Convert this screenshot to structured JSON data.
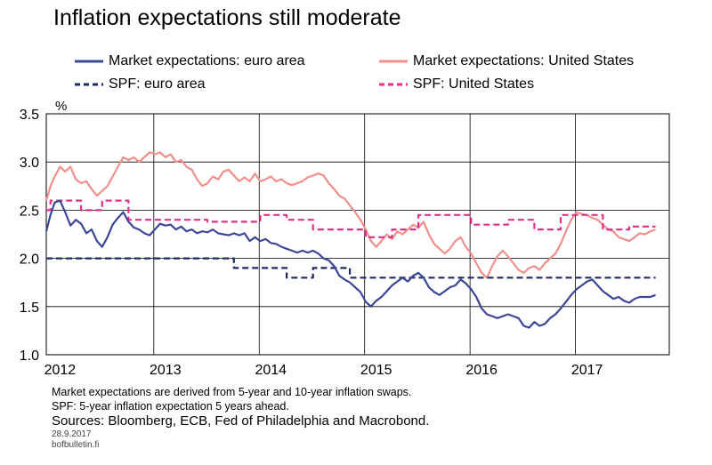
{
  "title": "Inflation expectations still moderate",
  "notes": {
    "line1": "Market expectations are derived from 5-year and 10-year inflation swaps.",
    "line2": "SPF: 5-year inflation expectation 5 years ahead.",
    "sources": "Sources: Bloomberg, ECB, Fed of Philadelphia and Macrobond.",
    "date": "28.9.2017",
    "site": "bofbulletin.fi"
  },
  "colors": {
    "market_euro": "#3c4896",
    "market_us": "#f0908c",
    "spf_euro": "#1f2a5e",
    "spf_us": "#e0308a"
  },
  "chart_data": {
    "type": "line",
    "title": "Inflation expectations still moderate",
    "ylabel": "%",
    "ylim": [
      1.0,
      3.5
    ],
    "yticks": [
      "1.0",
      "1.5",
      "2.0",
      "2.5",
      "3.0",
      "3.5"
    ],
    "xlim": [
      2011.92,
      2017.83
    ],
    "xticks": [
      {
        "label": "2012",
        "x": 2012.0
      },
      {
        "label": "2013",
        "x": 2013.0
      },
      {
        "label": "2014",
        "x": 2014.0
      },
      {
        "label": "2015",
        "x": 2015.0
      },
      {
        "label": "2016",
        "x": 2016.0
      },
      {
        "label": "2017",
        "x": 2017.0
      }
    ],
    "grid": true,
    "legend_position": "top",
    "series": [
      {
        "name": "Market expectations: euro area",
        "style": "solid",
        "points": [
          [
            2011.92,
            2.28
          ],
          [
            2011.96,
            2.45
          ],
          [
            2012.0,
            2.58
          ],
          [
            2012.05,
            2.6
          ],
          [
            2012.1,
            2.48
          ],
          [
            2012.15,
            2.34
          ],
          [
            2012.2,
            2.4
          ],
          [
            2012.25,
            2.36
          ],
          [
            2012.3,
            2.26
          ],
          [
            2012.35,
            2.3
          ],
          [
            2012.4,
            2.18
          ],
          [
            2012.45,
            2.12
          ],
          [
            2012.5,
            2.22
          ],
          [
            2012.55,
            2.35
          ],
          [
            2012.6,
            2.42
          ],
          [
            2012.65,
            2.48
          ],
          [
            2012.7,
            2.38
          ],
          [
            2012.75,
            2.32
          ],
          [
            2012.8,
            2.3
          ],
          [
            2012.85,
            2.26
          ],
          [
            2012.9,
            2.24
          ],
          [
            2012.95,
            2.3
          ],
          [
            2013.0,
            2.36
          ],
          [
            2013.05,
            2.34
          ],
          [
            2013.1,
            2.35
          ],
          [
            2013.15,
            2.3
          ],
          [
            2013.2,
            2.33
          ],
          [
            2013.25,
            2.28
          ],
          [
            2013.3,
            2.3
          ],
          [
            2013.35,
            2.26
          ],
          [
            2013.4,
            2.28
          ],
          [
            2013.45,
            2.27
          ],
          [
            2013.5,
            2.3
          ],
          [
            2013.55,
            2.26
          ],
          [
            2013.6,
            2.25
          ],
          [
            2013.65,
            2.24
          ],
          [
            2013.7,
            2.26
          ],
          [
            2013.75,
            2.24
          ],
          [
            2013.8,
            2.26
          ],
          [
            2013.85,
            2.18
          ],
          [
            2013.9,
            2.22
          ],
          [
            2013.95,
            2.18
          ],
          [
            2014.0,
            2.2
          ],
          [
            2014.05,
            2.16
          ],
          [
            2014.1,
            2.15
          ],
          [
            2014.15,
            2.12
          ],
          [
            2014.2,
            2.1
          ],
          [
            2014.25,
            2.08
          ],
          [
            2014.3,
            2.06
          ],
          [
            2014.35,
            2.08
          ],
          [
            2014.4,
            2.06
          ],
          [
            2014.45,
            2.08
          ],
          [
            2014.5,
            2.05
          ],
          [
            2014.55,
            2.0
          ],
          [
            2014.6,
            1.98
          ],
          [
            2014.65,
            1.92
          ],
          [
            2014.7,
            1.82
          ],
          [
            2014.75,
            1.78
          ],
          [
            2014.8,
            1.75
          ],
          [
            2014.85,
            1.7
          ],
          [
            2014.9,
            1.65
          ],
          [
            2014.95,
            1.55
          ],
          [
            2015.0,
            1.5
          ],
          [
            2015.05,
            1.56
          ],
          [
            2015.1,
            1.6
          ],
          [
            2015.15,
            1.66
          ],
          [
            2015.2,
            1.72
          ],
          [
            2015.25,
            1.76
          ],
          [
            2015.3,
            1.8
          ],
          [
            2015.35,
            1.76
          ],
          [
            2015.4,
            1.82
          ],
          [
            2015.45,
            1.85
          ],
          [
            2015.5,
            1.8
          ],
          [
            2015.55,
            1.7
          ],
          [
            2015.6,
            1.65
          ],
          [
            2015.65,
            1.62
          ],
          [
            2015.7,
            1.66
          ],
          [
            2015.75,
            1.7
          ],
          [
            2015.8,
            1.72
          ],
          [
            2015.85,
            1.78
          ],
          [
            2015.9,
            1.74
          ],
          [
            2015.95,
            1.68
          ],
          [
            2016.0,
            1.6
          ],
          [
            2016.05,
            1.48
          ],
          [
            2016.1,
            1.42
          ],
          [
            2016.15,
            1.4
          ],
          [
            2016.2,
            1.38
          ],
          [
            2016.25,
            1.4
          ],
          [
            2016.3,
            1.42
          ],
          [
            2016.35,
            1.4
          ],
          [
            2016.4,
            1.38
          ],
          [
            2016.45,
            1.3
          ],
          [
            2016.5,
            1.28
          ],
          [
            2016.55,
            1.34
          ],
          [
            2016.6,
            1.3
          ],
          [
            2016.65,
            1.32
          ],
          [
            2016.7,
            1.38
          ],
          [
            2016.75,
            1.42
          ],
          [
            2016.8,
            1.48
          ],
          [
            2016.85,
            1.55
          ],
          [
            2016.9,
            1.62
          ],
          [
            2016.95,
            1.68
          ],
          [
            2017.0,
            1.72
          ],
          [
            2017.05,
            1.76
          ],
          [
            2017.1,
            1.78
          ],
          [
            2017.15,
            1.72
          ],
          [
            2017.2,
            1.66
          ],
          [
            2017.25,
            1.62
          ],
          [
            2017.3,
            1.58
          ],
          [
            2017.35,
            1.6
          ],
          [
            2017.4,
            1.56
          ],
          [
            2017.45,
            1.54
          ],
          [
            2017.5,
            1.58
          ],
          [
            2017.55,
            1.6
          ],
          [
            2017.6,
            1.6
          ],
          [
            2017.65,
            1.6
          ],
          [
            2017.7,
            1.62
          ]
        ]
      },
      {
        "name": "Market expectations: United States",
        "style": "solid",
        "points": [
          [
            2011.92,
            2.6
          ],
          [
            2011.96,
            2.75
          ],
          [
            2012.0,
            2.85
          ],
          [
            2012.05,
            2.95
          ],
          [
            2012.1,
            2.9
          ],
          [
            2012.15,
            2.95
          ],
          [
            2012.2,
            2.82
          ],
          [
            2012.25,
            2.78
          ],
          [
            2012.3,
            2.8
          ],
          [
            2012.35,
            2.72
          ],
          [
            2012.4,
            2.65
          ],
          [
            2012.45,
            2.7
          ],
          [
            2012.5,
            2.75
          ],
          [
            2012.55,
            2.85
          ],
          [
            2012.6,
            2.95
          ],
          [
            2012.65,
            3.05
          ],
          [
            2012.7,
            3.02
          ],
          [
            2012.75,
            3.05
          ],
          [
            2012.8,
            3.0
          ],
          [
            2012.85,
            3.05
          ],
          [
            2012.9,
            3.1
          ],
          [
            2012.95,
            3.08
          ],
          [
            2013.0,
            3.1
          ],
          [
            2013.05,
            3.05
          ],
          [
            2013.1,
            3.08
          ],
          [
            2013.15,
            3.0
          ],
          [
            2013.2,
            3.02
          ],
          [
            2013.25,
            2.95
          ],
          [
            2013.3,
            2.92
          ],
          [
            2013.35,
            2.82
          ],
          [
            2013.4,
            2.75
          ],
          [
            2013.45,
            2.78
          ],
          [
            2013.5,
            2.85
          ],
          [
            2013.55,
            2.82
          ],
          [
            2013.6,
            2.9
          ],
          [
            2013.65,
            2.92
          ],
          [
            2013.7,
            2.86
          ],
          [
            2013.75,
            2.8
          ],
          [
            2013.8,
            2.84
          ],
          [
            2013.85,
            2.8
          ],
          [
            2013.9,
            2.88
          ],
          [
            2013.95,
            2.8
          ],
          [
            2014.0,
            2.82
          ],
          [
            2014.05,
            2.85
          ],
          [
            2014.1,
            2.8
          ],
          [
            2014.15,
            2.82
          ],
          [
            2014.2,
            2.78
          ],
          [
            2014.25,
            2.76
          ],
          [
            2014.3,
            2.78
          ],
          [
            2014.35,
            2.8
          ],
          [
            2014.4,
            2.84
          ],
          [
            2014.45,
            2.86
          ],
          [
            2014.5,
            2.88
          ],
          [
            2014.55,
            2.86
          ],
          [
            2014.6,
            2.78
          ],
          [
            2014.65,
            2.72
          ],
          [
            2014.7,
            2.65
          ],
          [
            2014.75,
            2.62
          ],
          [
            2014.8,
            2.55
          ],
          [
            2014.85,
            2.48
          ],
          [
            2014.9,
            2.4
          ],
          [
            2014.95,
            2.3
          ],
          [
            2015.0,
            2.18
          ],
          [
            2015.05,
            2.12
          ],
          [
            2015.1,
            2.18
          ],
          [
            2015.15,
            2.25
          ],
          [
            2015.2,
            2.2
          ],
          [
            2015.25,
            2.28
          ],
          [
            2015.3,
            2.25
          ],
          [
            2015.35,
            2.3
          ],
          [
            2015.4,
            2.35
          ],
          [
            2015.45,
            2.32
          ],
          [
            2015.5,
            2.38
          ],
          [
            2015.55,
            2.25
          ],
          [
            2015.6,
            2.15
          ],
          [
            2015.65,
            2.1
          ],
          [
            2015.7,
            2.05
          ],
          [
            2015.75,
            2.1
          ],
          [
            2015.8,
            2.18
          ],
          [
            2015.85,
            2.22
          ],
          [
            2015.9,
            2.12
          ],
          [
            2015.95,
            2.05
          ],
          [
            2016.0,
            1.95
          ],
          [
            2016.05,
            1.85
          ],
          [
            2016.1,
            1.8
          ],
          [
            2016.15,
            1.92
          ],
          [
            2016.2,
            2.02
          ],
          [
            2016.25,
            2.08
          ],
          [
            2016.3,
            2.02
          ],
          [
            2016.35,
            1.95
          ],
          [
            2016.4,
            1.88
          ],
          [
            2016.45,
            1.85
          ],
          [
            2016.5,
            1.9
          ],
          [
            2016.55,
            1.92
          ],
          [
            2016.6,
            1.88
          ],
          [
            2016.65,
            1.95
          ],
          [
            2016.7,
            2.0
          ],
          [
            2016.75,
            2.05
          ],
          [
            2016.8,
            2.15
          ],
          [
            2016.85,
            2.28
          ],
          [
            2016.9,
            2.4
          ],
          [
            2016.95,
            2.48
          ],
          [
            2017.0,
            2.46
          ],
          [
            2017.05,
            2.45
          ],
          [
            2017.1,
            2.42
          ],
          [
            2017.15,
            2.4
          ],
          [
            2017.2,
            2.35
          ],
          [
            2017.25,
            2.3
          ],
          [
            2017.3,
            2.28
          ],
          [
            2017.35,
            2.22
          ],
          [
            2017.4,
            2.2
          ],
          [
            2017.45,
            2.18
          ],
          [
            2017.5,
            2.22
          ],
          [
            2017.55,
            2.26
          ],
          [
            2017.6,
            2.25
          ],
          [
            2017.65,
            2.28
          ],
          [
            2017.7,
            2.3
          ]
        ]
      },
      {
        "name": "SPF: euro area",
        "style": "dashed",
        "points": [
          [
            2011.92,
            2.0
          ],
          [
            2013.7,
            2.0
          ],
          [
            2013.7,
            1.9
          ],
          [
            2014.2,
            1.9
          ],
          [
            2014.2,
            1.8
          ],
          [
            2014.45,
            1.8
          ],
          [
            2014.45,
            1.9
          ],
          [
            2014.8,
            1.9
          ],
          [
            2014.8,
            1.8
          ],
          [
            2017.7,
            1.8
          ]
        ]
      },
      {
        "name": "SPF: United States",
        "style": "dashed",
        "points": [
          [
            2011.92,
            2.5
          ],
          [
            2011.96,
            2.5
          ],
          [
            2011.96,
            2.6
          ],
          [
            2012.25,
            2.6
          ],
          [
            2012.25,
            2.5
          ],
          [
            2012.45,
            2.5
          ],
          [
            2012.45,
            2.6
          ],
          [
            2012.7,
            2.6
          ],
          [
            2012.7,
            2.4
          ],
          [
            2013.45,
            2.4
          ],
          [
            2013.45,
            2.38
          ],
          [
            2013.95,
            2.38
          ],
          [
            2013.95,
            2.45
          ],
          [
            2014.2,
            2.45
          ],
          [
            2014.2,
            2.4
          ],
          [
            2014.45,
            2.4
          ],
          [
            2014.45,
            2.3
          ],
          [
            2014.95,
            2.3
          ],
          [
            2014.95,
            2.22
          ],
          [
            2015.2,
            2.22
          ],
          [
            2015.2,
            2.3
          ],
          [
            2015.45,
            2.3
          ],
          [
            2015.45,
            2.45
          ],
          [
            2015.95,
            2.45
          ],
          [
            2015.95,
            2.35
          ],
          [
            2016.3,
            2.35
          ],
          [
            2016.3,
            2.4
          ],
          [
            2016.55,
            2.4
          ],
          [
            2016.55,
            2.3
          ],
          [
            2016.8,
            2.3
          ],
          [
            2016.8,
            2.45
          ],
          [
            2017.2,
            2.45
          ],
          [
            2017.2,
            2.3
          ],
          [
            2017.45,
            2.3
          ],
          [
            2017.45,
            2.33
          ],
          [
            2017.7,
            2.33
          ]
        ]
      }
    ]
  }
}
